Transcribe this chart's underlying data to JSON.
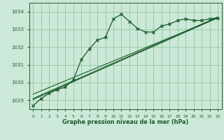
{
  "background_color": "#cce8d8",
  "grid_color": "#99ccaa",
  "line_color": "#1a5c2a",
  "text_color": "#1a5c2a",
  "xlabel": "Graphe pression niveau de la mer (hPa)",
  "ylim": [
    1028.5,
    1034.5
  ],
  "xlim": [
    -0.5,
    23.5
  ],
  "yticks": [
    1029,
    1030,
    1031,
    1032,
    1033,
    1034
  ],
  "xticks": [
    0,
    1,
    2,
    3,
    4,
    5,
    6,
    7,
    8,
    9,
    10,
    11,
    12,
    13,
    14,
    15,
    16,
    17,
    18,
    19,
    20,
    21,
    22,
    23
  ],
  "series1_x": [
    0,
    1,
    2,
    3,
    4,
    5,
    6,
    7,
    8,
    9,
    10,
    11,
    12,
    13,
    14,
    15,
    16,
    17,
    18,
    19,
    20,
    21,
    22,
    23
  ],
  "series1_y": [
    1028.7,
    1029.1,
    1029.4,
    1029.6,
    1029.75,
    1030.15,
    1031.3,
    1031.9,
    1032.4,
    1032.55,
    1033.6,
    1033.85,
    1033.45,
    1033.05,
    1032.85,
    1032.85,
    1033.2,
    1033.3,
    1033.5,
    1033.6,
    1033.5,
    1033.5,
    1033.6,
    1033.65
  ],
  "series2_x": [
    0,
    23
  ],
  "series2_y": [
    1029.05,
    1033.65
  ],
  "series3_x": [
    0,
    23
  ],
  "series3_y": [
    1029.35,
    1033.65
  ],
  "series4_x": [
    0,
    23
  ],
  "series4_y": [
    1029.1,
    1033.7
  ]
}
